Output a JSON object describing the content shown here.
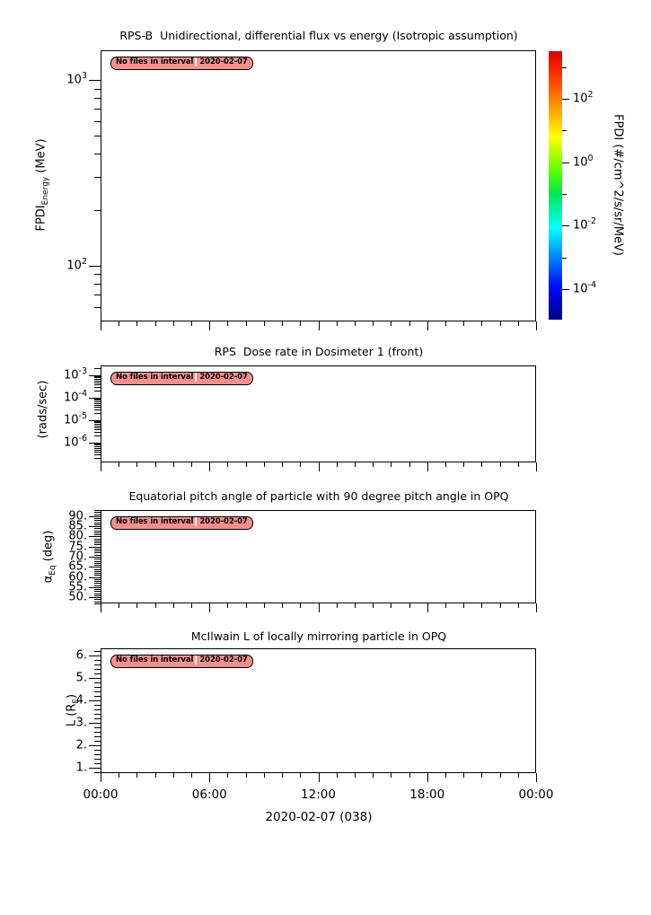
{
  "figure": {
    "background": "#ffffff",
    "text_color": "#000000",
    "badge_bg": "#f5908d",
    "badge": {
      "prefix": "No files in interval",
      "date": "2020-02-07"
    }
  },
  "xaxis": {
    "range_hours": [
      0,
      24
    ],
    "major_tick_hours": [
      0,
      6,
      12,
      18,
      24
    ],
    "minor_tick_step_hours": 1,
    "tick_labels": [
      "00:00",
      "06:00",
      "12:00",
      "18:00",
      "00:00"
    ],
    "label": "2020-02-07 (038)"
  },
  "chart_data": [
    {
      "type": "line",
      "title": "RPS-B  Unidirectional, differential flux vs energy (Isotropic assumption)",
      "ylabel": {
        "main": "FPDI",
        "sub": "Energy",
        "rest": " (MeV)"
      },
      "yscale": "log",
      "yrange_log10": [
        1.7,
        3.16
      ],
      "ytick_log10": [
        3,
        2
      ],
      "series": [],
      "no_data": true,
      "colorbar": {
        "label": "FPDI (#/cm^2/s/sr/MeV)",
        "range_log10": [
          -4.96,
          3.5
        ],
        "major_ticks_log10": [
          2,
          0,
          -2,
          -4
        ],
        "minor_ticks_log10": [
          3,
          1,
          -1,
          -3
        ],
        "colormap": "rainbow",
        "gradient_stops": [
          "#000085 0%",
          "#0008ff 12%",
          "#0077ff 22%",
          "#00ffff 34%",
          "#00e650 47%",
          "#55ff00 55%",
          "#ffff00 68%",
          "#ff9100 80%",
          "#ff2d00 92%",
          "#d60000 100%"
        ]
      }
    },
    {
      "type": "line",
      "title": "RPS  Dose rate in Dosimeter 1 (front)",
      "ylabel": {
        "main": "(rads/sec)",
        "sub": "",
        "rest": ""
      },
      "yscale": "log",
      "yrange_log10": [
        -6.88,
        -2.56
      ],
      "ytick_log10": [
        -3,
        -4,
        -5,
        -6
      ],
      "series": [],
      "no_data": true
    },
    {
      "type": "line",
      "title": "Equatorial pitch angle of particle with 90 degree pitch angle in OPQ",
      "ylabel": {
        "main": "α",
        "sub": "Eq",
        "rest": " (deg)"
      },
      "yscale": "linear",
      "yrange": [
        46.9,
        93.1
      ],
      "ytick_values": [
        90,
        85,
        80,
        75,
        70,
        65,
        60,
        55,
        50
      ],
      "ytick_labels": [
        "90.",
        "85.",
        "80.",
        "75.",
        "70.",
        "65.",
        "60.",
        "55.",
        "50."
      ],
      "minor_tick_step": 1,
      "series": [],
      "no_data": true
    },
    {
      "type": "line",
      "title": "McIlwain L of locally mirroring particle in OPQ",
      "ylabel": {
        "main": "L (R",
        "sub": "E",
        "rest": ")"
      },
      "yscale": "linear",
      "yrange": [
        0.76,
        6.32
      ],
      "ytick_values": [
        6,
        5,
        4,
        3,
        2,
        1
      ],
      "ytick_labels": [
        "6.",
        "5.",
        "4.",
        "3.",
        "2.",
        "1."
      ],
      "minor_tick_step": 0.2,
      "series": [],
      "no_data": true
    }
  ]
}
